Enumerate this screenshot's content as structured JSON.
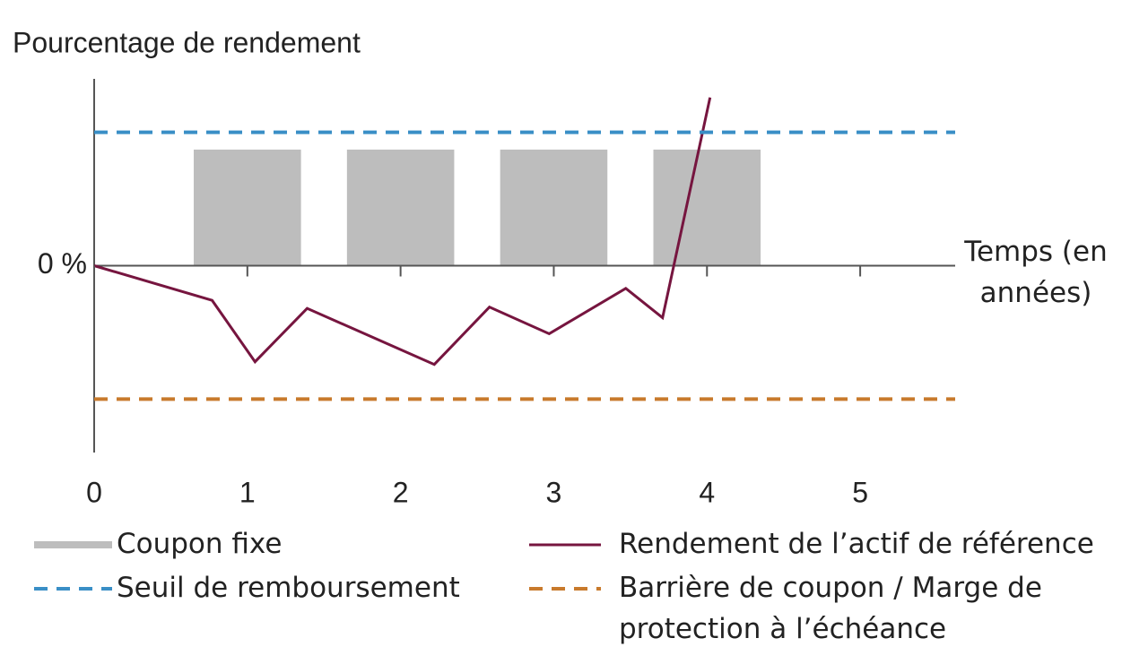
{
  "chart_data": {
    "type": "line",
    "y_label": "Pourcentage de rendement",
    "x_label": "Temps (en années)",
    "xlim": [
      0,
      5.62
    ],
    "xticks": [
      0,
      1,
      2,
      3,
      4,
      5
    ],
    "ylim": [
      -14,
      14
    ],
    "yticks": [
      {
        "value": 0,
        "label": "0 %"
      }
    ],
    "series": [
      {
        "name": "Coupon fixe",
        "type": "bar",
        "color": "#bdbdbd",
        "x": [
          1,
          2,
          3,
          4
        ],
        "values": [
          8.7,
          8.7,
          8.7,
          8.7
        ]
      },
      {
        "name": "Rendement de l’actif de référence",
        "type": "line",
        "color": "#76153f",
        "x": [
          0,
          0.77,
          1.05,
          1.39,
          2.22,
          2.58,
          2.97,
          3.47,
          3.71,
          4.02
        ],
        "values": [
          0,
          -2.6,
          -7.2,
          -3.2,
          -7.4,
          -3.1,
          -5.1,
          -1.7,
          -3.9,
          12.6
        ]
      },
      {
        "name": "Seuil de remboursement",
        "type": "hline",
        "color": "#3a8fc6",
        "values": [
          10
        ]
      },
      {
        "name": "Barrière de coupon / Marge de protection à l’échéance",
        "type": "hline",
        "color": "#c87a2c",
        "values": [
          -10
        ]
      }
    ]
  }
}
